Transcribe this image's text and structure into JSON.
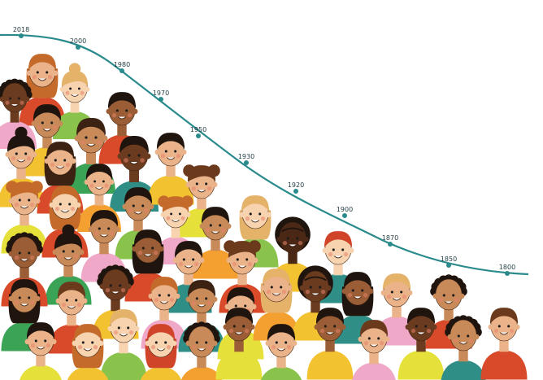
{
  "timeline": {
    "line_color": "#2a8a8c",
    "dot_color": "#2a8a8c",
    "labels": [
      "2018",
      "2000",
      "1980",
      "1970",
      "1950",
      "1930",
      "1920",
      "1900",
      "1870",
      "1850",
      "1800"
    ]
  },
  "crowd": {
    "skin_tones": [
      "#f7d3b0",
      "#eab38a",
      "#c98a5a",
      "#9a5d35",
      "#6b3b20",
      "#4a2815"
    ],
    "hair_colors": [
      "#1f140e",
      "#3b2213",
      "#6b3a1c",
      "#c46a2b",
      "#e5b26a",
      "#d0452a"
    ],
    "shirt_colors": [
      "#3aa356",
      "#f2c230",
      "#d84a2a",
      "#f0a8c8",
      "#e6e13a",
      "#2f8f87",
      "#f4a030",
      "#89c34c"
    ],
    "people_count": 62
  }
}
